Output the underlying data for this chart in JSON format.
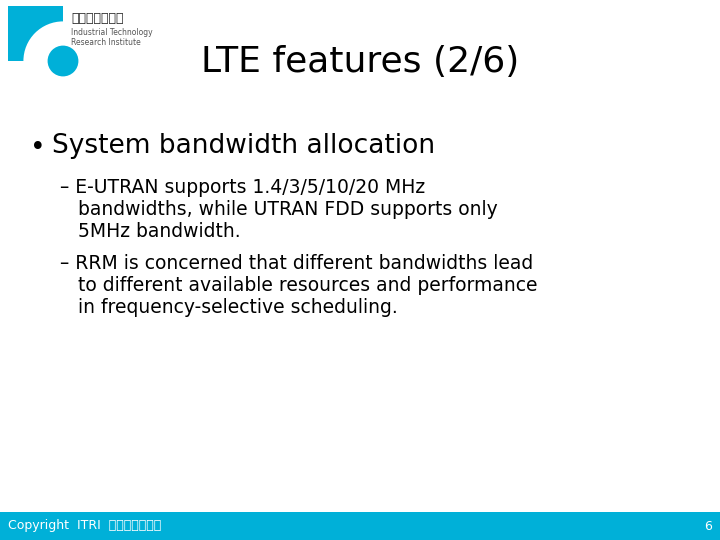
{
  "title": "LTE features (2/6)",
  "title_fontsize": 26,
  "title_color": "#000000",
  "bg_color": "#ffffff",
  "bullet_text": "System bandwidth allocation",
  "bullet_fontsize": 19,
  "sub1_line1": "– E-UTRAN supports 1.4/3/5/10/20 MHz",
  "sub1_line2": "   bandwidths, while UTRAN FDD supports only",
  "sub1_line3": "   5MHz bandwidth.",
  "sub2_line1": "– RRM is concerned that different bandwidths lead",
  "sub2_line2": "   to different available resources and performance",
  "sub2_line3": "   in frequency-selective scheduling.",
  "sub_fontsize": 13.5,
  "footer_text": "Copyright  ITRI  工業技術研究院",
  "footer_bg": "#00b0d8",
  "footer_fontsize": 9,
  "footer_text_color": "#ffffff",
  "page_number": "6",
  "logo_color": "#00b0d8"
}
